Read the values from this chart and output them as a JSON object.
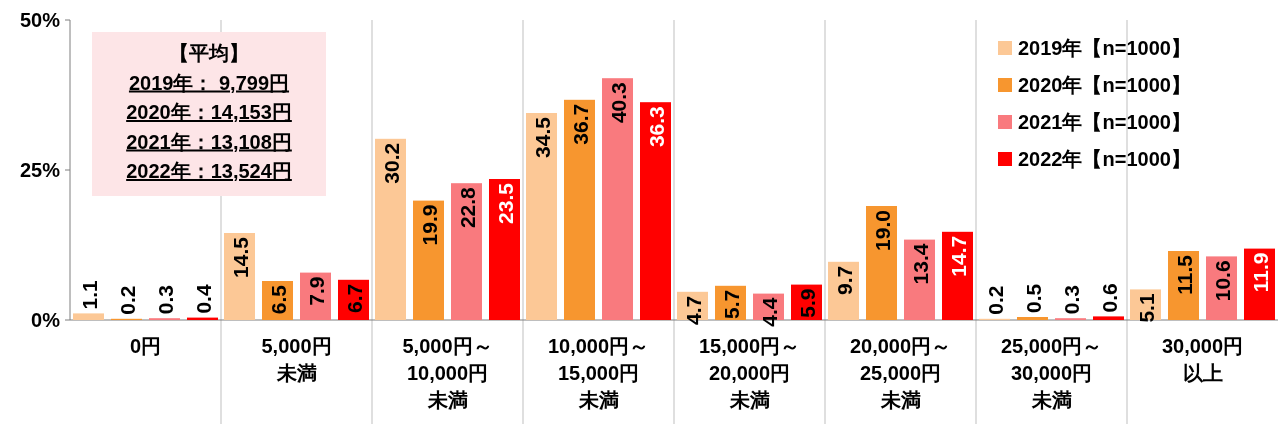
{
  "chart_data": {
    "type": "bar",
    "categories": [
      "0円",
      "5,000円未満",
      "5,000円～10,000円未満",
      "10,000円～15,000円未満",
      "15,000円～20,000円未満",
      "20,000円～25,000円未満",
      "25,000円～30,000円未満",
      "30,000円以上"
    ],
    "series": [
      {
        "name": "2019年【n=1000】",
        "color": "#fcc896",
        "values": [
          1.1,
          14.5,
          30.2,
          34.5,
          4.7,
          9.7,
          0.2,
          5.1
        ],
        "value_labels": [
          "1.1",
          "14.5",
          "30.2",
          "34.5",
          "4.7",
          "9.7",
          "0.2",
          "5.1"
        ]
      },
      {
        "name": "2020年【n=1000】",
        "color": "#f7962f",
        "values": [
          0.2,
          6.5,
          19.9,
          36.7,
          5.7,
          19.0,
          0.5,
          11.5
        ],
        "value_labels": [
          "0.2",
          "6.5",
          "19.9",
          "36.7",
          "5.7",
          "19.0",
          "0.5",
          "11.5"
        ]
      },
      {
        "name": "2021年【n=1000】",
        "color": "#f97a7e",
        "values": [
          0.3,
          7.9,
          22.8,
          40.3,
          4.4,
          13.4,
          0.3,
          10.6
        ],
        "value_labels": [
          "0.3",
          "7.9",
          "22.8",
          "40.3",
          "4.4",
          "13.4",
          "0.3",
          "10.6"
        ]
      },
      {
        "name": "2022年【n=1000】",
        "color": "#ff0000",
        "values": [
          0.4,
          6.7,
          23.5,
          36.3,
          5.9,
          14.7,
          0.6,
          11.9
        ],
        "value_labels": [
          "0.4",
          "6.7",
          "23.5",
          "36.3",
          "5.9",
          "14.7",
          "0.6",
          "11.9"
        ]
      }
    ],
    "ylim": [
      0,
      50
    ],
    "yticks": [
      {
        "value": 0,
        "label": "0%"
      },
      {
        "value": 25,
        "label": "25%"
      },
      {
        "value": 50,
        "label": "50%"
      }
    ],
    "grid": "x",
    "legend": "top right",
    "annotations": [
      "【平均】",
      "2019年：  9,799円",
      "2020年：14,153円",
      "2021年：13,108円",
      "2022年：13,524円"
    ]
  }
}
